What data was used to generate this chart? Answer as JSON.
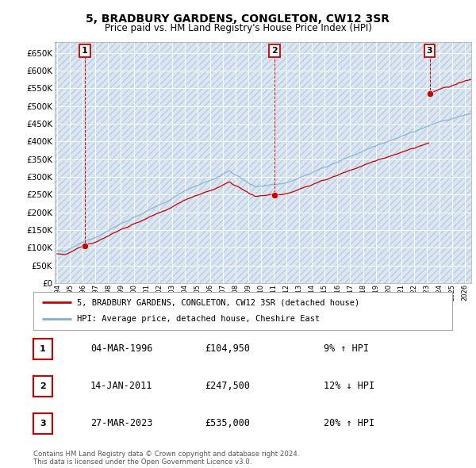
{
  "title": "5, BRADBURY GARDENS, CONGLETON, CW12 3SR",
  "subtitle": "Price paid vs. HM Land Registry's House Price Index (HPI)",
  "ylim": [
    0,
    680000
  ],
  "yticks": [
    0,
    50000,
    100000,
    150000,
    200000,
    250000,
    300000,
    350000,
    400000,
    450000,
    500000,
    550000,
    600000,
    650000
  ],
  "ytick_labels": [
    "£0",
    "£50K",
    "£100K",
    "£150K",
    "£200K",
    "£250K",
    "£300K",
    "£350K",
    "£400K",
    "£450K",
    "£500K",
    "£550K",
    "£600K",
    "£650K"
  ],
  "plot_bg_color": "#dce6f1",
  "grid_color": "#ffffff",
  "hpi_line_color": "#7ab0d4",
  "price_line_color": "#cc0000",
  "sale_dot_color": "#cc0000",
  "annotation_box_color": "#cc0000",
  "sale_points": [
    {
      "date_num": 1996.17,
      "price": 104950,
      "label": "1"
    },
    {
      "date_num": 2011.04,
      "price": 247500,
      "label": "2"
    },
    {
      "date_num": 2023.23,
      "price": 535000,
      "label": "3"
    }
  ],
  "legend_line1": "5, BRADBURY GARDENS, CONGLETON, CW12 3SR (detached house)",
  "legend_line2": "HPI: Average price, detached house, Cheshire East",
  "table_rows": [
    {
      "num": "1",
      "date": "04-MAR-1996",
      "price": "£104,950",
      "hpi": "9% ↑ HPI"
    },
    {
      "num": "2",
      "date": "14-JAN-2011",
      "price": "£247,500",
      "hpi": "12% ↓ HPI"
    },
    {
      "num": "3",
      "date": "27-MAR-2023",
      "price": "£535,000",
      "hpi": "20% ↑ HPI"
    }
  ],
  "footer": "Contains HM Land Registry data © Crown copyright and database right 2024.\nThis data is licensed under the Open Government Licence v3.0.",
  "xmin": 1993.8,
  "xmax": 2026.5
}
